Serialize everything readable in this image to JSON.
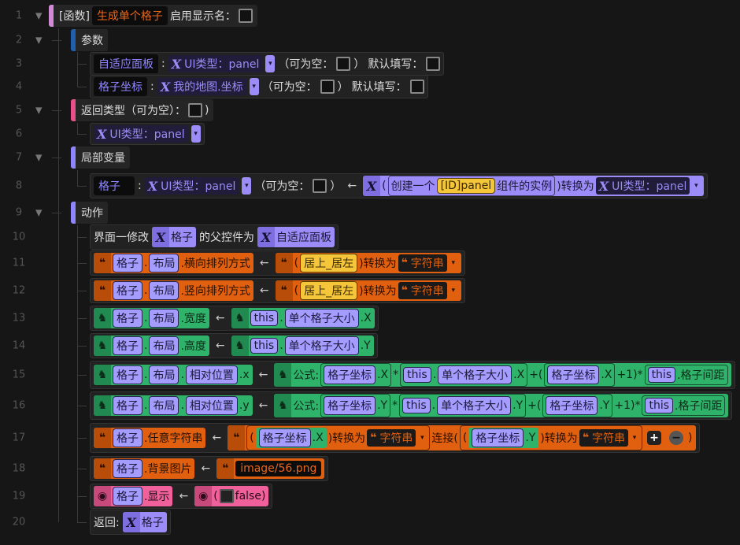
{
  "rows": [
    {
      "n": "1",
      "depth": 0,
      "toggle": true,
      "header": {
        "bar": "#d38ad6"
      },
      "items": [
        {
          "t": "text",
          "v": "[函数]"
        },
        {
          "t": "name",
          "v": "生成单个格子",
          "tone": "orange"
        },
        {
          "t": "text",
          "v": "启用显示名："
        },
        {
          "t": "check"
        }
      ]
    },
    {
      "n": "2",
      "depth": 1,
      "toggle": true,
      "header": {
        "bar": "#1f5fae"
      },
      "items": [
        {
          "t": "text",
          "v": "参数"
        }
      ]
    },
    {
      "n": "3",
      "depth": 2,
      "items": [
        {
          "t": "name",
          "v": "自适应面板"
        },
        {
          "t": "text",
          "v": ":"
        },
        {
          "t": "type",
          "icon": "x-icon",
          "v": "UI类型：panel"
        },
        {
          "t": "dd"
        },
        {
          "t": "text",
          "v": "（可为空："
        },
        {
          "t": "check"
        },
        {
          "t": "text",
          "v": "）"
        },
        {
          "t": "text",
          "v": "默认填写："
        },
        {
          "t": "check"
        }
      ]
    },
    {
      "n": "4",
      "depth": 2,
      "items": [
        {
          "t": "name",
          "v": "格子坐标"
        },
        {
          "t": "text",
          "v": ":"
        },
        {
          "t": "type",
          "icon": "x-icon",
          "v": "我的地图.坐标"
        },
        {
          "t": "dd"
        },
        {
          "t": "text",
          "v": "（可为空："
        },
        {
          "t": "check"
        },
        {
          "t": "text",
          "v": "）"
        },
        {
          "t": "text",
          "v": "默认填写："
        },
        {
          "t": "check"
        }
      ]
    },
    {
      "n": "5",
      "depth": 1,
      "toggle": true,
      "header": {
        "bar": "#e8508a"
      },
      "items": [
        {
          "t": "text",
          "v": "返回类型（可为空）："
        },
        {
          "t": "check"
        },
        {
          "t": "text",
          "v": ")"
        }
      ]
    },
    {
      "n": "6",
      "depth": 2,
      "items": [
        {
          "t": "type",
          "icon": "x-icon",
          "v": "UI类型：panel"
        },
        {
          "t": "dd"
        }
      ]
    },
    {
      "n": "7",
      "depth": 1,
      "toggle": true,
      "header": {
        "bar": "#8f86ff"
      },
      "items": [
        {
          "t": "text",
          "v": "局部变量"
        }
      ]
    },
    {
      "n": "8",
      "depth": 2,
      "items": [
        {
          "t": "name",
          "v": "格子"
        },
        {
          "t": "text",
          "v": ":"
        },
        {
          "t": "type",
          "icon": "x-icon",
          "v": "UI类型：panel"
        },
        {
          "t": "dd"
        },
        {
          "t": "text",
          "v": "（可为空："
        },
        {
          "t": "check"
        },
        {
          "t": "text",
          "v": "）"
        },
        {
          "t": "arrow",
          "v": "←"
        },
        {
          "t": "block",
          "color": "purple",
          "icon": "x-icon",
          "items": [
            {
              "t": "text",
              "v": "("
            },
            {
              "t": "group",
              "items": [
                {
                  "t": "text",
                  "v": "创建一个"
                },
                {
                  "t": "str",
                  "v": "[ID]panel"
                },
                {
                  "t": "text",
                  "v": "组件的实例"
                }
              ]
            },
            {
              "t": "text",
              "v": ")转换为"
            },
            {
              "t": "type",
              "icon": "x-icon",
              "v": "UI类型：panel"
            },
            {
              "t": "dd"
            }
          ]
        }
      ]
    },
    {
      "n": "9",
      "depth": 1,
      "toggle": true,
      "header": {
        "bar": "#8f86ff"
      },
      "items": [
        {
          "t": "text",
          "v": "动作"
        }
      ]
    },
    {
      "n": "10",
      "depth": 2,
      "items": [
        {
          "t": "text",
          "v": "界面一修改"
        },
        {
          "t": "block",
          "color": "purple",
          "icon": "x-icon",
          "items": [
            {
              "t": "text",
              "v": "格子"
            }
          ]
        },
        {
          "t": "text",
          "v": "的父控件为"
        },
        {
          "t": "block",
          "color": "purple",
          "icon": "x-icon",
          "items": [
            {
              "t": "text",
              "v": "自适应面板"
            }
          ]
        }
      ]
    },
    {
      "n": "11",
      "depth": 2,
      "items": [
        {
          "t": "block",
          "color": "orange",
          "icon": "quote-icon",
          "items": [
            {
              "t": "var",
              "v": "格子"
            },
            {
              "t": "text",
              "v": "."
            },
            {
              "t": "var",
              "v": "布局"
            },
            {
              "t": "text",
              "v": ".横向排列方式"
            }
          ]
        },
        {
          "t": "arrow",
          "v": "←"
        },
        {
          "t": "block",
          "color": "orange",
          "icon": "quote-icon",
          "items": [
            {
              "t": "text",
              "v": "("
            },
            {
              "t": "str",
              "v": "居上_居左"
            },
            {
              "t": "text",
              "v": ")转换为"
            },
            {
              "t": "type",
              "icon": "quote-icon",
              "v": "字符串"
            },
            {
              "t": "dd"
            }
          ]
        }
      ]
    },
    {
      "n": "12",
      "depth": 2,
      "items": [
        {
          "t": "block",
          "color": "orange",
          "icon": "quote-icon",
          "items": [
            {
              "t": "var",
              "v": "格子"
            },
            {
              "t": "text",
              "v": "."
            },
            {
              "t": "var",
              "v": "布局"
            },
            {
              "t": "text",
              "v": ".竖向排列方式"
            }
          ]
        },
        {
          "t": "arrow",
          "v": "←"
        },
        {
          "t": "block",
          "color": "orange",
          "icon": "quote-icon",
          "items": [
            {
              "t": "text",
              "v": "("
            },
            {
              "t": "str",
              "v": "居上_居左"
            },
            {
              "t": "text",
              "v": ")转换为"
            },
            {
              "t": "type",
              "icon": "quote-icon",
              "v": "字符串"
            },
            {
              "t": "dd"
            }
          ]
        }
      ]
    },
    {
      "n": "13",
      "depth": 2,
      "items": [
        {
          "t": "block",
          "color": "green",
          "icon": "duck-icon",
          "items": [
            {
              "t": "var",
              "v": "格子"
            },
            {
              "t": "text",
              "v": "."
            },
            {
              "t": "var",
              "v": "布局"
            },
            {
              "t": "text",
              "v": ".宽度"
            }
          ]
        },
        {
          "t": "arrow",
          "v": "←"
        },
        {
          "t": "block",
          "color": "green",
          "icon": "duck-icon",
          "items": [
            {
              "t": "var",
              "v": "this"
            },
            {
              "t": "text",
              "v": "."
            },
            {
              "t": "var",
              "v": "单个格子大小"
            },
            {
              "t": "text",
              "v": ".X"
            }
          ]
        }
      ]
    },
    {
      "n": "14",
      "depth": 2,
      "items": [
        {
          "t": "block",
          "color": "green",
          "icon": "duck-icon",
          "items": [
            {
              "t": "var",
              "v": "格子"
            },
            {
              "t": "text",
              "v": "."
            },
            {
              "t": "var",
              "v": "布局"
            },
            {
              "t": "text",
              "v": ".高度"
            }
          ]
        },
        {
          "t": "arrow",
          "v": "←"
        },
        {
          "t": "block",
          "color": "green",
          "icon": "duck-icon",
          "items": [
            {
              "t": "var",
              "v": "this"
            },
            {
              "t": "text",
              "v": "."
            },
            {
              "t": "var",
              "v": "单个格子大小"
            },
            {
              "t": "text",
              "v": ".Y"
            }
          ]
        }
      ]
    },
    {
      "n": "15",
      "depth": 2,
      "items": [
        {
          "t": "block",
          "color": "green",
          "icon": "duck-icon",
          "items": [
            {
              "t": "var",
              "v": "格子"
            },
            {
              "t": "text",
              "v": "."
            },
            {
              "t": "var",
              "v": "布局"
            },
            {
              "t": "text",
              "v": "."
            },
            {
              "t": "var",
              "v": "相对位置"
            },
            {
              "t": "text",
              "v": ".x"
            }
          ]
        },
        {
          "t": "arrow",
          "v": "←"
        },
        {
          "t": "block",
          "color": "green",
          "icon": "duck-icon",
          "items": [
            {
              "t": "text",
              "v": "公式:"
            },
            {
              "t": "group",
              "items": [
                {
                  "t": "var",
                  "v": "格子坐标"
                },
                {
                  "t": "text",
                  "v": ".X"
                }
              ]
            },
            {
              "t": "text",
              "v": "*"
            },
            {
              "t": "group",
              "items": [
                {
                  "t": "var",
                  "v": "this"
                },
                {
                  "t": "text",
                  "v": "."
                },
                {
                  "t": "var",
                  "v": "单个格子大小"
                },
                {
                  "t": "text",
                  "v": ".X"
                }
              ]
            },
            {
              "t": "text",
              "v": "+("
            },
            {
              "t": "group",
              "items": [
                {
                  "t": "var",
                  "v": "格子坐标"
                },
                {
                  "t": "text",
                  "v": ".X"
                }
              ]
            },
            {
              "t": "text",
              "v": "+1)*"
            },
            {
              "t": "group",
              "items": [
                {
                  "t": "var",
                  "v": "this"
                },
                {
                  "t": "text",
                  "v": ".格子间距"
                }
              ]
            }
          ]
        }
      ]
    },
    {
      "n": "16",
      "depth": 2,
      "items": [
        {
          "t": "block",
          "color": "green",
          "icon": "duck-icon",
          "items": [
            {
              "t": "var",
              "v": "格子"
            },
            {
              "t": "text",
              "v": "."
            },
            {
              "t": "var",
              "v": "布局"
            },
            {
              "t": "text",
              "v": "."
            },
            {
              "t": "var",
              "v": "相对位置"
            },
            {
              "t": "text",
              "v": ".y"
            }
          ]
        },
        {
          "t": "arrow",
          "v": "←"
        },
        {
          "t": "block",
          "color": "green",
          "icon": "duck-icon",
          "items": [
            {
              "t": "text",
              "v": "公式:"
            },
            {
              "t": "group",
              "items": [
                {
                  "t": "var",
                  "v": "格子坐标"
                },
                {
                  "t": "text",
                  "v": ".Y"
                }
              ]
            },
            {
              "t": "text",
              "v": "*"
            },
            {
              "t": "group",
              "items": [
                {
                  "t": "var",
                  "v": "this"
                },
                {
                  "t": "text",
                  "v": "."
                },
                {
                  "t": "var",
                  "v": "单个格子大小"
                },
                {
                  "t": "text",
                  "v": ".Y"
                }
              ]
            },
            {
              "t": "text",
              "v": "+("
            },
            {
              "t": "group",
              "items": [
                {
                  "t": "var",
                  "v": "格子坐标"
                },
                {
                  "t": "text",
                  "v": ".Y"
                }
              ]
            },
            {
              "t": "text",
              "v": "+1)*"
            },
            {
              "t": "group",
              "items": [
                {
                  "t": "var",
                  "v": "this"
                },
                {
                  "t": "text",
                  "v": ".格子间距"
                }
              ]
            }
          ]
        }
      ]
    },
    {
      "n": "17",
      "depth": 2,
      "items": [
        {
          "t": "block",
          "color": "orange",
          "icon": "quote-icon",
          "items": [
            {
              "t": "var",
              "v": "格子"
            },
            {
              "t": "text",
              "v": ".任意字符串"
            }
          ]
        },
        {
          "t": "arrow",
          "v": "←"
        },
        {
          "t": "block",
          "color": "orange",
          "icon": "quote-icon",
          "items": [
            {
              "t": "group",
              "items": [
                {
                  "t": "text",
                  "v": "("
                },
                {
                  "t": "block",
                  "color": "green",
                  "items": [
                    {
                      "t": "var",
                      "v": "格子坐标"
                    },
                    {
                      "t": "text",
                      "v": ".X"
                    }
                  ]
                },
                {
                  "t": "text",
                  "v": ")转换为"
                },
                {
                  "t": "type",
                  "icon": "quote-icon",
                  "v": "字符串"
                },
                {
                  "t": "dd"
                }
              ]
            },
            {
              "t": "text",
              "v": "连接("
            },
            {
              "t": "group",
              "items": [
                {
                  "t": "text",
                  "v": "("
                },
                {
                  "t": "block",
                  "color": "green",
                  "items": [
                    {
                      "t": "var",
                      "v": "格子坐标"
                    },
                    {
                      "t": "text",
                      "v": ".Y"
                    }
                  ]
                },
                {
                  "t": "text",
                  "v": ")转换为"
                },
                {
                  "t": "type",
                  "icon": "quote-icon",
                  "v": "字符串"
                },
                {
                  "t": "dd"
                }
              ]
            },
            {
              "t": "button",
              "icon": "plus-icon",
              "v": "+"
            },
            {
              "t": "button",
              "icon": "minus-icon",
              "v": "−"
            },
            {
              "t": "text",
              "v": ")"
            }
          ]
        }
      ]
    },
    {
      "n": "18",
      "depth": 2,
      "items": [
        {
          "t": "block",
          "color": "orange",
          "icon": "quote-icon",
          "items": [
            {
              "t": "var",
              "v": "格子"
            },
            {
              "t": "text",
              "v": ".背景图片"
            }
          ]
        },
        {
          "t": "arrow",
          "v": "←"
        },
        {
          "t": "block",
          "color": "orange",
          "icon": "quote-icon",
          "items": [
            {
              "t": "name",
              "v": "image/56.png",
              "tone": "orange"
            }
          ]
        }
      ]
    },
    {
      "n": "19",
      "depth": 2,
      "items": [
        {
          "t": "block",
          "color": "pink",
          "icon": "eye-icon",
          "items": [
            {
              "t": "var",
              "v": "格子"
            },
            {
              "t": "text",
              "v": ".显示"
            }
          ]
        },
        {
          "t": "arrow",
          "v": "←"
        },
        {
          "t": "block",
          "color": "pink",
          "icon": "eye-icon",
          "items": [
            {
              "t": "text",
              "v": "("
            },
            {
              "t": "check",
              "dark": true
            },
            {
              "t": "text",
              "v": "false)"
            }
          ]
        }
      ]
    },
    {
      "n": "20",
      "depth": 2,
      "items": [
        {
          "t": "text",
          "v": "返回:"
        },
        {
          "t": "block",
          "color": "purple",
          "icon": "x-icon",
          "items": [
            {
              "t": "text",
              "v": "格子"
            }
          ]
        }
      ]
    }
  ]
}
